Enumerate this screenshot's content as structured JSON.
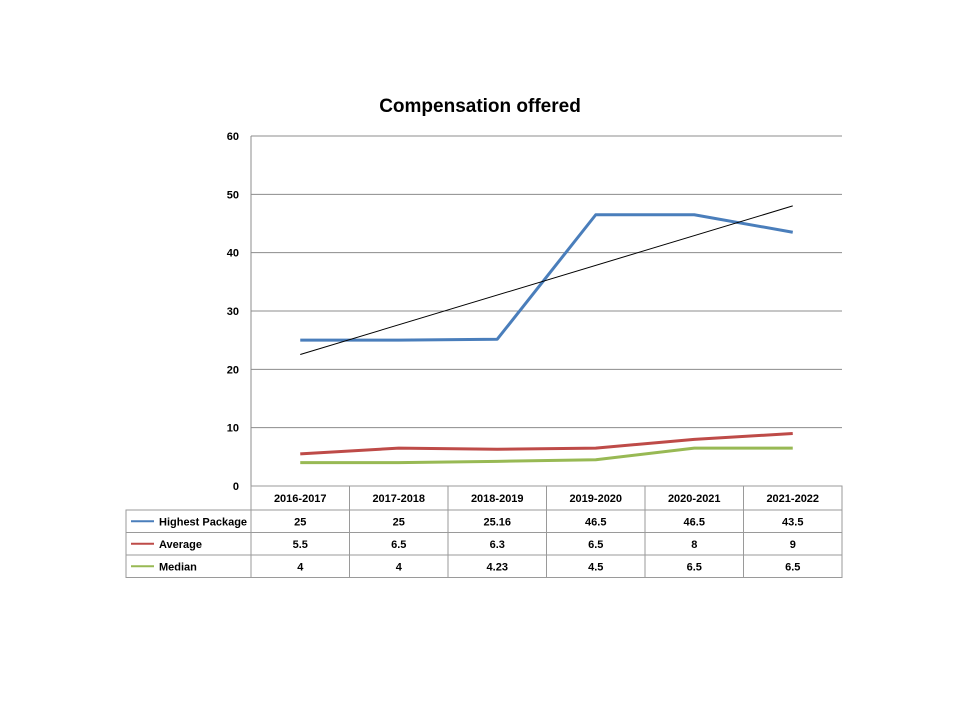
{
  "chart_data": {
    "type": "line",
    "title": "Compensation offered",
    "categories": [
      "2016-2017",
      "2017-2018",
      "2018-2019",
      "2019-2020",
      "2020-2021",
      "2021-2022"
    ],
    "ylim": [
      0,
      60
    ],
    "yticks": [
      "0",
      "10",
      "20",
      "30",
      "40",
      "50",
      "60"
    ],
    "grid": true,
    "legend": "data-table",
    "series": [
      {
        "name": "Highest Package",
        "values": [
          25,
          25,
          25.16,
          46.5,
          46.5,
          43.5
        ],
        "labels": [
          "25",
          "25",
          "25.16",
          "46.5",
          "46.5",
          "43.5"
        ],
        "color": "#4a7ebb"
      },
      {
        "name": "Average",
        "values": [
          5.5,
          6.5,
          6.3,
          6.5,
          8,
          9
        ],
        "labels": [
          "5.5",
          "6.5",
          "6.3",
          "6.5",
          "8",
          "9"
        ],
        "color": "#be4b48"
      },
      {
        "name": "Median",
        "values": [
          4,
          4,
          4.23,
          4.5,
          6.5,
          6.5
        ],
        "labels": [
          "4",
          "4",
          "4.23",
          "4.5",
          "6.5",
          "6.5"
        ],
        "color": "#98b954"
      }
    ],
    "trendline": {
      "series": "Highest Package",
      "type": "linear",
      "color": "#000000"
    }
  }
}
